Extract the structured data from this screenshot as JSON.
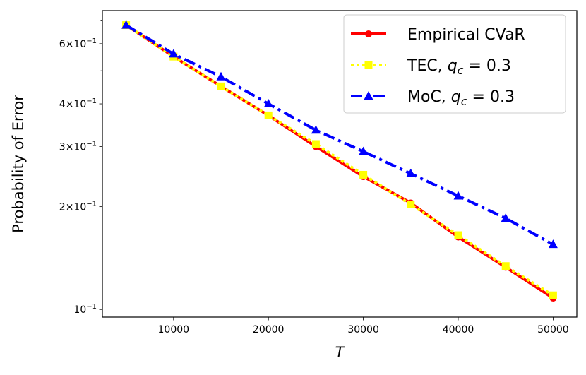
{
  "chart_data": {
    "type": "line",
    "xlabel": "T",
    "ylabel": "Probability of Error",
    "xscale": "linear",
    "yscale": "log",
    "xlim": [
      2500,
      52500
    ],
    "ylim": [
      0.095,
      0.75
    ],
    "x": [
      5000,
      10000,
      15000,
      20000,
      25000,
      30000,
      35000,
      40000,
      45000,
      50000
    ],
    "xticks": [
      10000,
      20000,
      30000,
      40000,
      50000
    ],
    "xtick_labels": [
      "10000",
      "20000",
      "30000",
      "40000",
      "50000"
    ],
    "yticks": [
      {
        "value": 0.1,
        "mant": "10",
        "exp": "−1"
      },
      {
        "value": 0.2,
        "mant": "2×10",
        "exp": "−1"
      },
      {
        "value": 0.3,
        "mant": "3×10",
        "exp": "−1"
      },
      {
        "value": 0.4,
        "mant": "4×10",
        "exp": "−1"
      },
      {
        "value": 0.6,
        "mant": "6×10",
        "exp": "−1"
      }
    ],
    "grid": false,
    "legend_position": "top-right",
    "series": [
      {
        "key": "empirical",
        "name": "Empirical CVaR",
        "color": "#ff0000",
        "linestyle": "solid",
        "marker": "circle",
        "values": [
          0.68,
          0.55,
          0.45,
          0.37,
          0.3,
          0.245,
          0.205,
          0.163,
          0.133,
          0.108
        ]
      },
      {
        "key": "tec",
        "name_plain": "TEC, ",
        "name_var": "q",
        "name_sub": "c",
        "name_rest": " = 0.3",
        "color": "#ffff00",
        "linestyle": "dotted",
        "marker": "square",
        "values": [
          0.68,
          0.55,
          0.45,
          0.37,
          0.305,
          0.248,
          0.203,
          0.165,
          0.134,
          0.11
        ]
      },
      {
        "key": "moc",
        "name_plain": "MoC, ",
        "name_var": "q",
        "name_sub": "c",
        "name_rest": " = 0.3",
        "color": "#0000ff",
        "linestyle": "dashdot",
        "marker": "triangle",
        "values": [
          0.68,
          0.56,
          0.48,
          0.4,
          0.335,
          0.29,
          0.25,
          0.215,
          0.185,
          0.155
        ]
      }
    ]
  }
}
